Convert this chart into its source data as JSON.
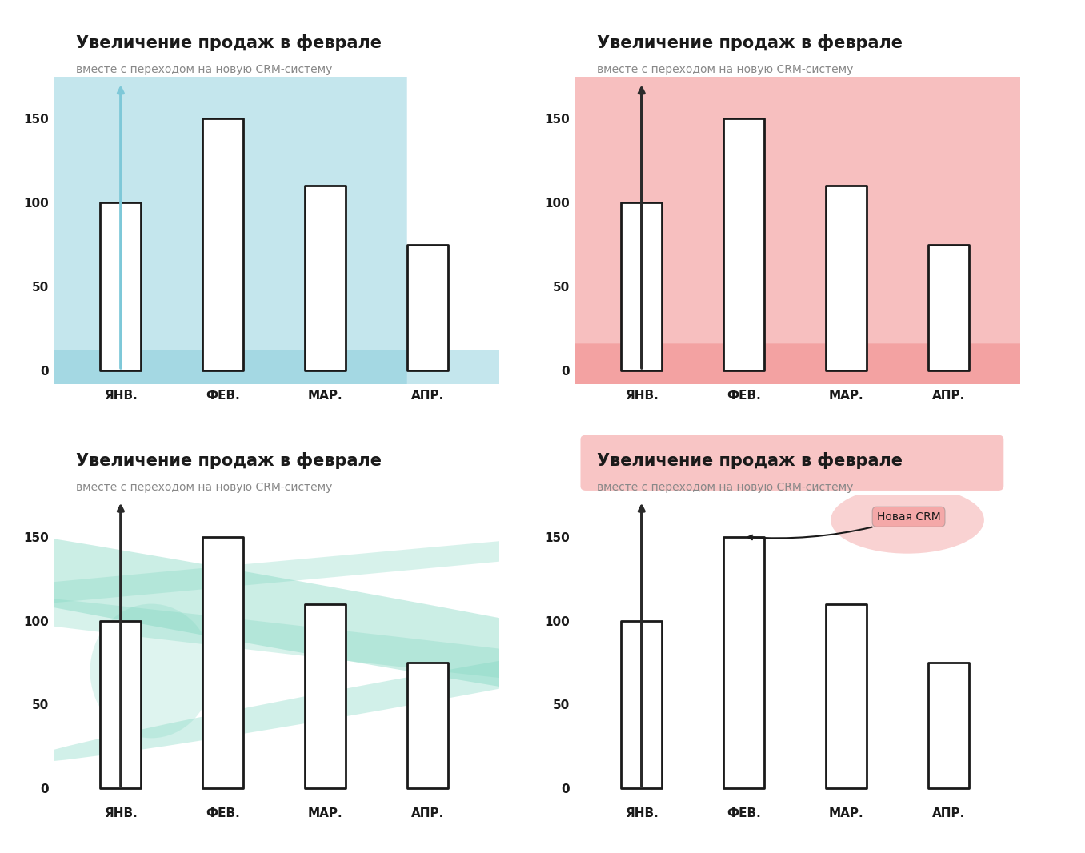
{
  "title": "Увеличение продаж в феврале",
  "subtitle": "вместе с переходом на новую CRM-систему",
  "categories": [
    "ЯНВ.",
    "ФЕВ.",
    "МАР.",
    "АПР."
  ],
  "values": [
    100,
    150,
    110,
    75
  ],
  "ylim": [
    0,
    175
  ],
  "yticks": [
    0,
    50,
    100,
    150
  ],
  "color_blue": "#7EC8D8",
  "color_red": "#F08080",
  "color_teal": "#7DD6C0",
  "bar_edge_color": "#1a1a1a",
  "bar_face_color": "white",
  "axis_color": "#2a2a2a",
  "title_color": "#1a1a1a",
  "subtitle_color": "#888888",
  "annotation_label": "Новая CRM",
  "annotation_box_color": "#F08080"
}
